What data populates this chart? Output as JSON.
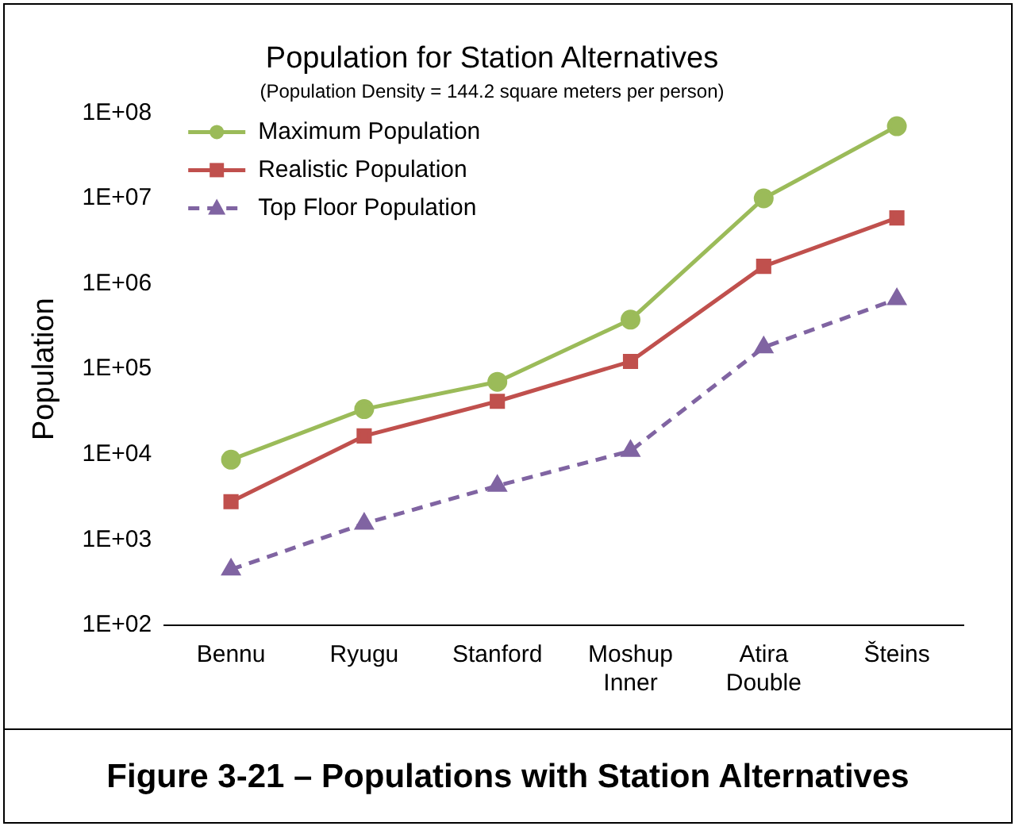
{
  "chart_data": {
    "type": "line",
    "title": "Population for Station Alternatives",
    "subtitle": "(Population Density = 144.2 square meters per person)",
    "ylabel": "Population",
    "categories": [
      "Bennu",
      "Ryugu",
      "Stanford",
      "Moshup Inner",
      "Atira Double",
      "Šteins"
    ],
    "series": [
      {
        "name": "Maximum Population",
        "color": "#9bbb59",
        "marker": "circle",
        "line_style": "solid",
        "values": [
          8700,
          34000,
          71000,
          380000,
          10000000,
          70000000
        ]
      },
      {
        "name": "Realistic Population",
        "color": "#c0504d",
        "marker": "square",
        "line_style": "solid",
        "values": [
          2800,
          16500,
          42000,
          123000,
          1600000,
          5900000
        ]
      },
      {
        "name": "Top Floor Population",
        "color": "#8064a2",
        "marker": "triangle",
        "line_style": "dashed",
        "values": [
          450,
          1550,
          4300,
          11000,
          180000,
          660000
        ]
      }
    ],
    "log": "y",
    "ylim": [
      100,
      100000000
    ],
    "yticks": [
      {
        "value": 100,
        "label": "1E+02"
      },
      {
        "value": 1000,
        "label": "1E+03"
      },
      {
        "value": 10000,
        "label": "1E+04"
      },
      {
        "value": 100000,
        "label": "1E+05"
      },
      {
        "value": 1000000,
        "label": "1E+06"
      },
      {
        "value": 10000000,
        "label": "1E+07"
      },
      {
        "value": 100000000,
        "label": "1E+08"
      }
    ],
    "grid": false,
    "legend": "top left",
    "annotations": [
      "Figure 3-21 – Populations with Station Alternatives"
    ]
  }
}
